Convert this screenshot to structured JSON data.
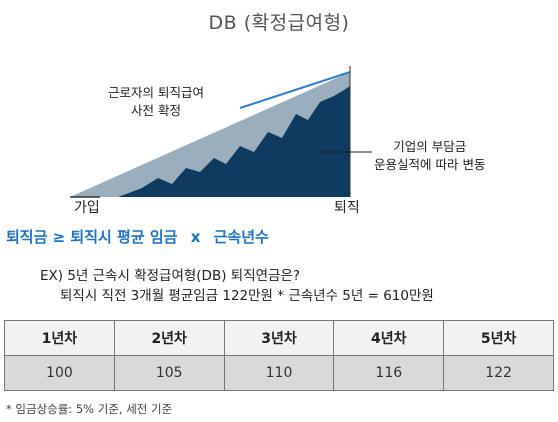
{
  "title": "DB (확정급여형)",
  "diagram": {
    "label_wage": [
      "근로자의 퇴직급여",
      "사전 확정"
    ],
    "label_employer": [
      "기업의 부담금",
      "운용실적에 따라 변동"
    ],
    "label_join": "가입",
    "label_retire": "퇴직",
    "colors": {
      "light_area": "#9aaebe",
      "dark_area": "#103b61",
      "line": "#2f80c8"
    }
  },
  "formula": {
    "left": "퇴직금 ≥ 퇴직시 평균 임금",
    "operator": "x",
    "right": "근속년수"
  },
  "example": {
    "line1": "EX) 5년 근속시 확정급여형(DB) 퇴직연금은?",
    "line2": "퇴직시 직전 3개월 평균임금 122만원 * 근속년수 5년 = 610만원"
  },
  "table": {
    "headers": [
      "1년차",
      "2년차",
      "3년차",
      "4년차",
      "5년차"
    ],
    "values": [
      "100",
      "105",
      "110",
      "116",
      "122"
    ]
  },
  "note": "* 임금상승률: 5% 기준, 세전 기준"
}
